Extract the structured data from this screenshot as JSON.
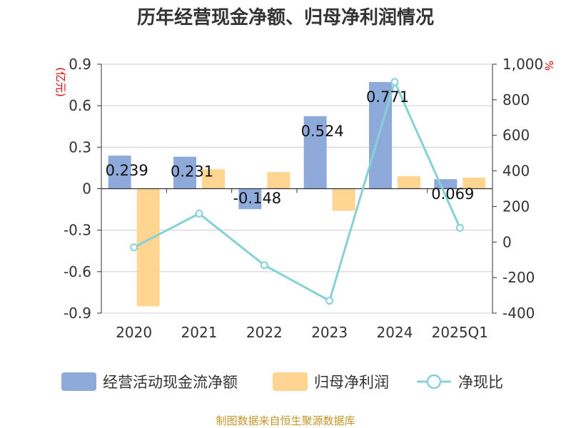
{
  "chart_data": {
    "type": "bar",
    "title": "历年经营现金净额、归母净利润情况",
    "categories": [
      "2020",
      "2021",
      "2022",
      "2023",
      "2024",
      "2025Q1"
    ],
    "left_unit": "(亿元)",
    "right_unit": "%",
    "left_axis": {
      "ylim": [
        -0.9,
        0.9
      ],
      "ticks": [
        "-0.9",
        "-0.6",
        "-0.3",
        "0",
        "0.3",
        "0.6",
        "0.9"
      ]
    },
    "right_axis": {
      "ylim": [
        -400,
        1000
      ],
      "ticks": [
        "-400",
        "-200",
        "0",
        "200",
        "400",
        "600",
        "800",
        "1,000"
      ]
    },
    "grid": true,
    "legend_position": "bottom",
    "series": [
      {
        "name": "经营活动现金流净额",
        "type": "bar",
        "axis": "left",
        "color": "#8eaadb",
        "values": [
          0.239,
          0.231,
          -0.148,
          0.524,
          0.771,
          0.069
        ],
        "labels": [
          "0.239",
          "0.231",
          "-0.148",
          "0.524",
          "0.771",
          "0.069"
        ]
      },
      {
        "name": "归母净利润",
        "type": "bar",
        "axis": "left",
        "color": "#ffd591",
        "values": [
          -0.85,
          0.14,
          0.12,
          -0.16,
          0.09,
          0.08
        ]
      },
      {
        "name": "净现比",
        "type": "line",
        "axis": "right",
        "color": "#86d1d6",
        "values": [
          -30,
          160,
          -130,
          -330,
          900,
          80
        ]
      }
    ],
    "source": "制图数据来自恒生聚源数据库"
  }
}
